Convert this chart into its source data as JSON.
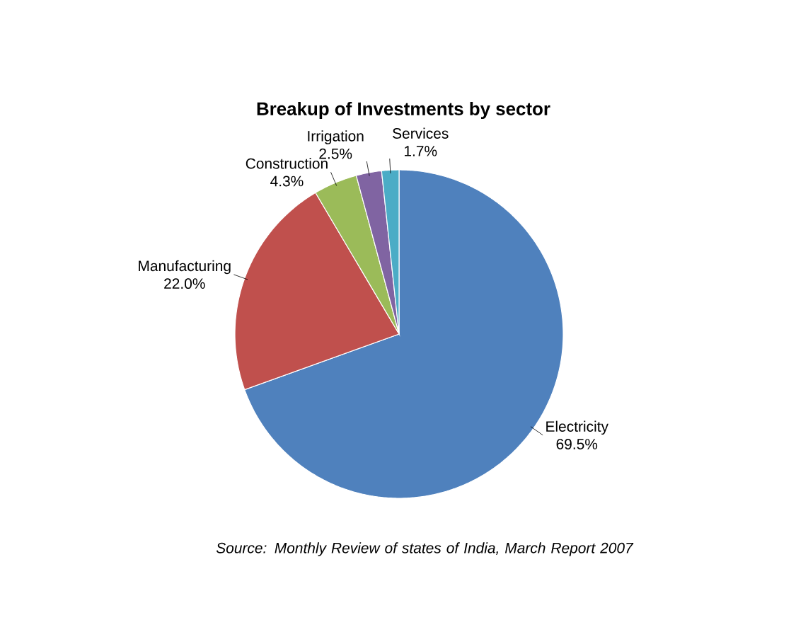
{
  "chart_data": {
    "type": "pie",
    "title": "Breakup of Investments by sector",
    "categories": [
      "Electricity",
      "Manufacturing",
      "Construction",
      "Irrigation",
      "Services"
    ],
    "values": [
      69.5,
      22.0,
      4.3,
      2.5,
      1.7
    ],
    "value_labels": [
      "69.5%",
      "22.0%",
      "4.3%",
      "2.5%",
      "1.7%"
    ],
    "colors": [
      "#4f81bd",
      "#c0504d",
      "#9bbb59",
      "#8064a2",
      "#4bacc6"
    ],
    "annotations": [
      "Source: Monthly Review of states of India, March Report 2007"
    ]
  }
}
